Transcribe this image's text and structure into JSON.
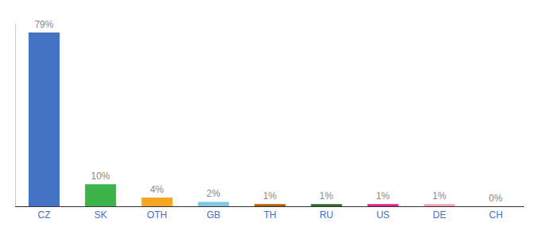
{
  "chart_data": {
    "type": "bar",
    "categories": [
      "CZ",
      "SK",
      "OTH",
      "GB",
      "TH",
      "RU",
      "US",
      "DE",
      "CH"
    ],
    "values": [
      79,
      10,
      4,
      2,
      1,
      1,
      1,
      1,
      0
    ],
    "value_labels": [
      "79%",
      "10%",
      "4%",
      "2%",
      "1%",
      "1%",
      "1%",
      "1%",
      "0%"
    ],
    "data_labels": true,
    "colors": [
      "#4472c4",
      "#3db34a",
      "#f5a623",
      "#7ec8e3",
      "#b85c00",
      "#2d6b2d",
      "#e91e8c",
      "#f4a0b5",
      "#cccccc"
    ],
    "ylim": [
      0,
      83
    ],
    "grid": false,
    "tick_labels": "x"
  }
}
